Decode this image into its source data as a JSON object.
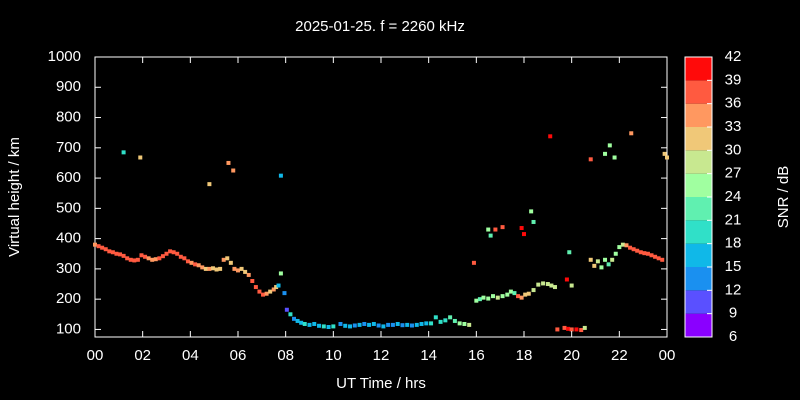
{
  "chart_data": {
    "type": "scatter",
    "title": "2025-01-25. f = 2260 kHz",
    "xlabel": "UT Time / hrs",
    "ylabel": "Virtual height / km",
    "xlim": [
      0,
      24
    ],
    "ylim": [
      75,
      1000
    ],
    "xticks": [
      {
        "value": 0,
        "label": "00"
      },
      {
        "value": 2,
        "label": "02"
      },
      {
        "value": 4,
        "label": "04"
      },
      {
        "value": 6,
        "label": "06"
      },
      {
        "value": 8,
        "label": "08"
      },
      10,
      12,
      14,
      16,
      18,
      20,
      22,
      {
        "value": 24,
        "label": "00"
      }
    ],
    "yticks": [
      100,
      200,
      300,
      400,
      500,
      600,
      700,
      800,
      900,
      1000
    ],
    "colorbar": {
      "label": "SNR / dB",
      "lim": [
        6,
        42
      ],
      "ticks": [
        6,
        9,
        12,
        15,
        18,
        21,
        24,
        27,
        30,
        33,
        36,
        39,
        42
      ],
      "colors": [
        "#8a00ff",
        "#5a50ff",
        "#1a90f0",
        "#10b8e8",
        "#30e0c8",
        "#60f0b0",
        "#a0ffa0",
        "#c8e890",
        "#f0c878",
        "#ff9860",
        "#ff5a40",
        "#ff0a0a"
      ]
    },
    "x": [
      0.0,
      0.15,
      0.3,
      0.45,
      0.6,
      0.75,
      0.9,
      1.05,
      1.2,
      1.35,
      1.5,
      1.65,
      1.8,
      1.95,
      2.1,
      2.25,
      2.4,
      2.55,
      2.7,
      2.85,
      3.0,
      3.15,
      3.3,
      3.45,
      3.6,
      3.75,
      3.9,
      4.05,
      4.2,
      4.35,
      4.5,
      4.65,
      4.8,
      4.95,
      5.1,
      5.25,
      5.4,
      5.55,
      5.7,
      5.85,
      6.0,
      6.15,
      6.3,
      6.45,
      6.6,
      6.75,
      6.9,
      7.05,
      7.2,
      7.35,
      7.5,
      7.6,
      7.7,
      7.8,
      7.95,
      8.05,
      8.2,
      8.35,
      8.5,
      8.65,
      8.8,
      9.0,
      9.2,
      9.4,
      9.6,
      9.8,
      10.0,
      10.3,
      10.5,
      10.7,
      10.9,
      11.1,
      11.3,
      11.5,
      11.7,
      11.9,
      12.1,
      12.3,
      12.5,
      12.7,
      12.9,
      13.1,
      13.3,
      13.5,
      13.7,
      13.9,
      14.1,
      14.3,
      14.5,
      14.7,
      14.9,
      15.1,
      15.3,
      15.5,
      15.7,
      16.0,
      16.15,
      16.3,
      16.5,
      16.7,
      16.9,
      17.1,
      17.3,
      17.45,
      17.6,
      17.75,
      17.9,
      18.05,
      18.2,
      18.4,
      18.6,
      18.8,
      19.0,
      19.15,
      19.3,
      19.4,
      19.7,
      19.85,
      20.0,
      20.2,
      20.4,
      20.55,
      20.8,
      20.95,
      21.1,
      21.25,
      21.4,
      21.55,
      21.7,
      21.85,
      22.0,
      22.15,
      22.3,
      22.45,
      22.6,
      22.75,
      22.9,
      23.05,
      23.2,
      23.35,
      23.5,
      23.65,
      23.8,
      1.2,
      1.9,
      4.8,
      5.6,
      5.8,
      7.8,
      15.9,
      16.5,
      16.6,
      16.8,
      17.1,
      17.9,
      18.0,
      18.3,
      18.4,
      19.1,
      19.8,
      19.9,
      20.0,
      20.8,
      21.4,
      21.6,
      21.8,
      22.5,
      23.9,
      24.0
    ],
    "y": [
      380,
      375,
      370,
      365,
      358,
      355,
      350,
      348,
      343,
      335,
      330,
      328,
      330,
      345,
      340,
      335,
      330,
      332,
      335,
      342,
      350,
      358,
      355,
      350,
      340,
      335,
      325,
      320,
      315,
      312,
      305,
      300,
      300,
      302,
      298,
      300,
      330,
      335,
      320,
      300,
      295,
      300,
      290,
      280,
      260,
      240,
      225,
      215,
      218,
      225,
      232,
      240,
      245,
      285,
      220,
      165,
      150,
      135,
      128,
      122,
      118,
      115,
      118,
      112,
      110,
      108,
      110,
      118,
      112,
      110,
      113,
      115,
      118,
      115,
      118,
      113,
      110,
      115,
      115,
      118,
      114,
      115,
      113,
      115,
      118,
      120,
      120,
      140,
      125,
      130,
      140,
      128,
      120,
      118,
      115,
      195,
      200,
      205,
      202,
      210,
      205,
      210,
      215,
      225,
      220,
      210,
      205,
      215,
      218,
      230,
      248,
      252,
      250,
      245,
      240,
      100,
      105,
      102,
      100,
      100,
      98,
      105,
      330,
      310,
      325,
      305,
      330,
      315,
      330,
      350,
      372,
      380,
      378,
      370,
      365,
      360,
      355,
      352,
      350,
      345,
      340,
      335,
      330,
      685,
      668,
      580,
      650,
      625,
      608,
      320,
      430,
      410,
      430,
      438,
      435,
      415,
      490,
      455,
      738,
      265,
      355,
      245,
      662,
      680,
      708,
      668,
      748,
      680,
      668
    ],
    "snr": [
      33,
      36,
      36,
      36,
      36,
      36,
      36,
      36,
      36,
      36,
      36,
      36,
      36,
      37,
      36,
      33,
      33,
      33,
      36,
      36,
      36,
      37,
      37,
      36,
      36,
      36,
      36,
      33,
      36,
      33,
      33,
      30,
      33,
      30,
      30,
      30,
      33,
      31,
      30,
      33,
      33,
      31,
      31,
      33,
      36,
      36,
      36,
      36,
      33,
      31,
      33,
      31,
      15,
      24,
      14,
      11,
      19,
      12,
      17,
      16,
      18,
      17,
      16,
      17,
      18,
      17,
      18,
      12,
      16,
      15,
      14,
      15,
      14,
      15,
      16,
      14,
      15,
      12,
      14,
      15,
      14,
      15,
      14,
      15,
      16,
      17,
      18,
      19,
      20,
      20,
      22,
      22,
      24,
      24,
      27,
      24,
      22,
      25,
      24,
      25,
      27,
      25,
      24,
      24,
      22,
      36,
      33,
      30,
      30,
      27,
      28,
      28,
      27,
      28,
      27,
      38,
      37,
      40,
      37,
      40,
      38,
      28,
      30,
      30,
      27,
      24,
      24,
      21,
      27,
      24,
      25,
      27,
      33,
      36,
      36,
      36,
      37,
      37,
      36,
      37,
      37,
      37,
      38,
      18,
      31,
      31,
      33,
      33,
      16,
      36,
      24,
      21,
      37,
      36,
      40,
      40,
      24,
      22,
      40,
      40,
      21,
      27,
      37,
      24,
      24,
      24,
      33,
      30,
      30
    ]
  }
}
